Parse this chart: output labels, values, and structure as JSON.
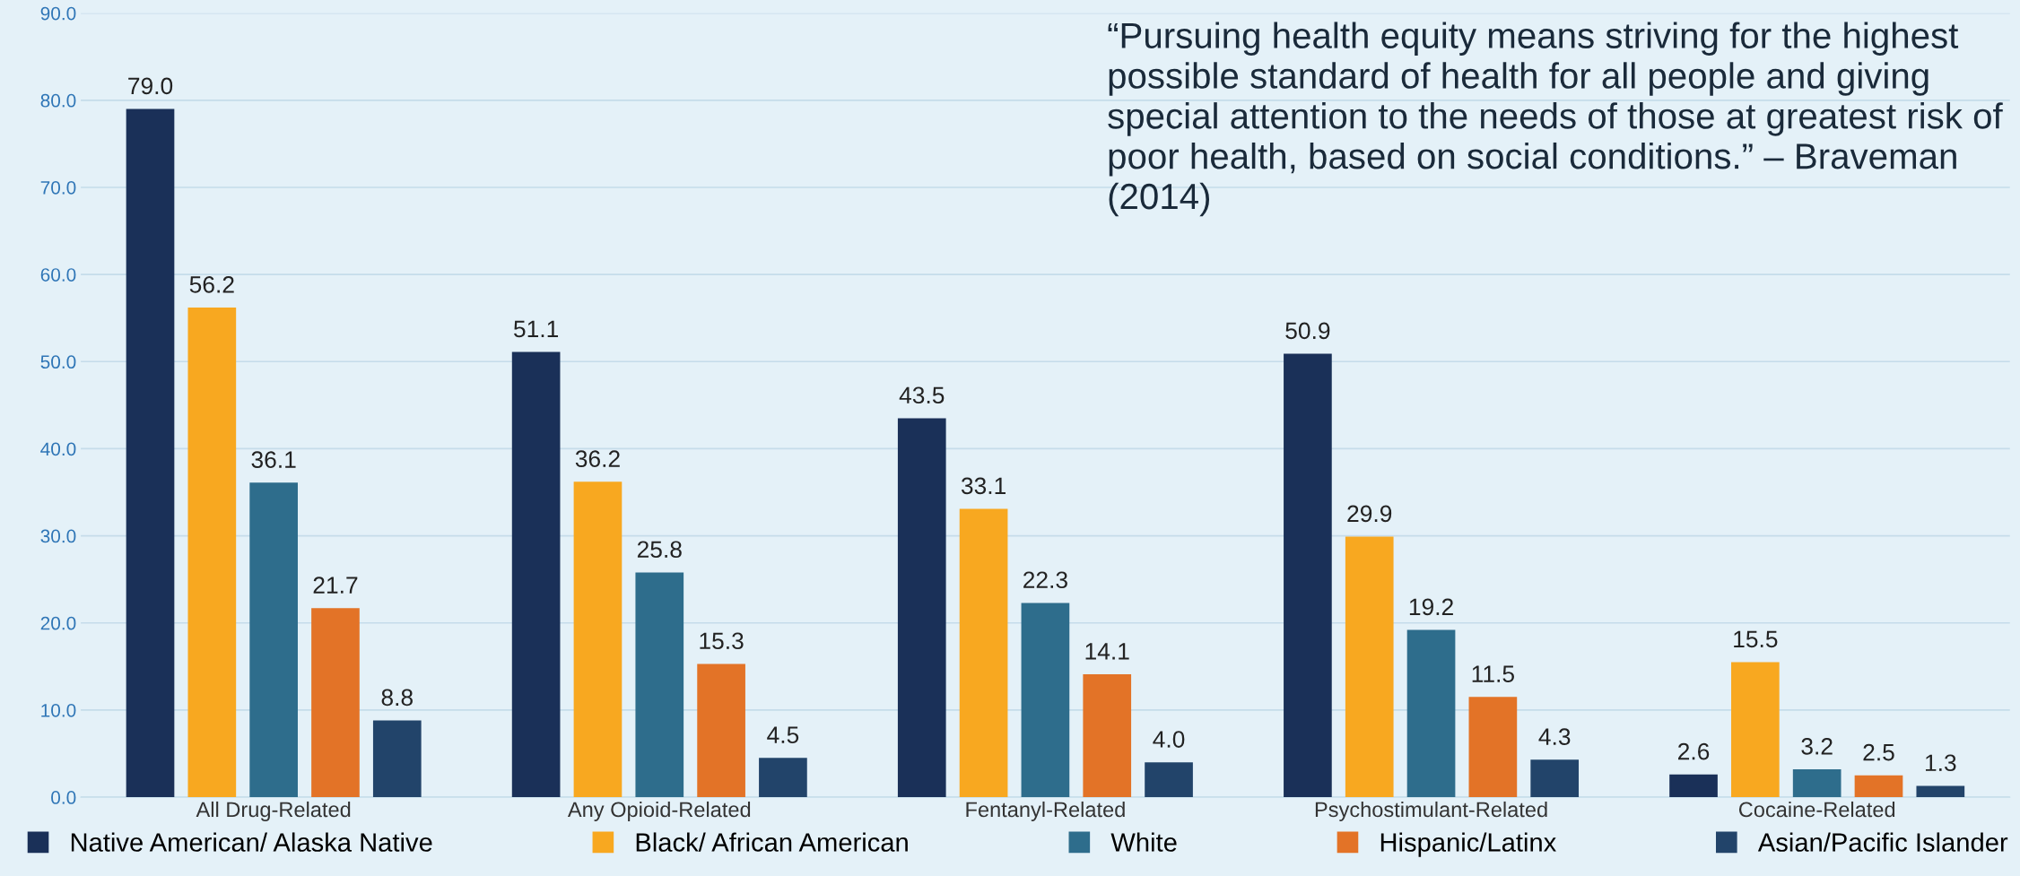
{
  "chart_data": {
    "type": "bar",
    "categories": [
      "All Drug-Related",
      "Any Opioid-Related",
      "Fentanyl-Related",
      "Psychostimulant-Related",
      "Cocaine-Related"
    ],
    "series": [
      {
        "name": "Native American/ Alaska Native",
        "color": "#1a3058",
        "values": [
          79.0,
          51.1,
          43.5,
          50.9,
          2.6
        ],
        "value_labels": [
          "79.0",
          "51.1",
          "43.5",
          "50.9",
          "2.6"
        ]
      },
      {
        "name": "Black/ African American",
        "color": "#f8a820",
        "values": [
          56.2,
          36.2,
          33.1,
          29.9,
          15.5
        ],
        "value_labels": [
          "56.2",
          "36.2",
          "33.1",
          "29.9",
          "15.5"
        ]
      },
      {
        "name": "White",
        "color": "#2e6d8c",
        "values": [
          36.1,
          25.8,
          22.3,
          19.2,
          3.2
        ],
        "value_labels": [
          "36.1",
          "25.8",
          "22.3",
          "19.2",
          "3.2"
        ]
      },
      {
        "name": "Hispanic/Latinx",
        "color": "#e37327",
        "values": [
          21.7,
          15.3,
          14.1,
          11.5,
          2.5
        ],
        "value_labels": [
          "21.7",
          "15.3",
          "14.1",
          "11.5",
          "2.5"
        ]
      },
      {
        "name": "Asian/Pacific Islander",
        "color": "#22446a",
        "values": [
          8.8,
          4.5,
          4.0,
          4.3,
          1.3
        ],
        "value_labels": [
          "8.8",
          "4.5",
          "4.0",
          "4.3",
          "1.3"
        ]
      }
    ],
    "ylim": [
      0,
      90
    ],
    "yticks": [
      {
        "value": 0,
        "label": "0.0"
      },
      {
        "value": 10,
        "label": "10.0"
      },
      {
        "value": 20,
        "label": "20.0"
      },
      {
        "value": 30,
        "label": "30.0"
      },
      {
        "value": 40,
        "label": "40.0"
      },
      {
        "value": 50,
        "label": "50.0"
      },
      {
        "value": 60,
        "label": "60.0"
      },
      {
        "value": 70,
        "label": "70.0"
      },
      {
        "value": 80,
        "label": "80.0"
      },
      {
        "value": 90,
        "label": "90.0"
      }
    ],
    "grid": "y",
    "legend": "bottom",
    "annotations": [
      "“Pursuing health equity means striving for the highest possible standard of health for all people and giving special attention to the needs of those at greatest risk of poor health, based on social conditions.” – Braveman (2014)"
    ]
  }
}
